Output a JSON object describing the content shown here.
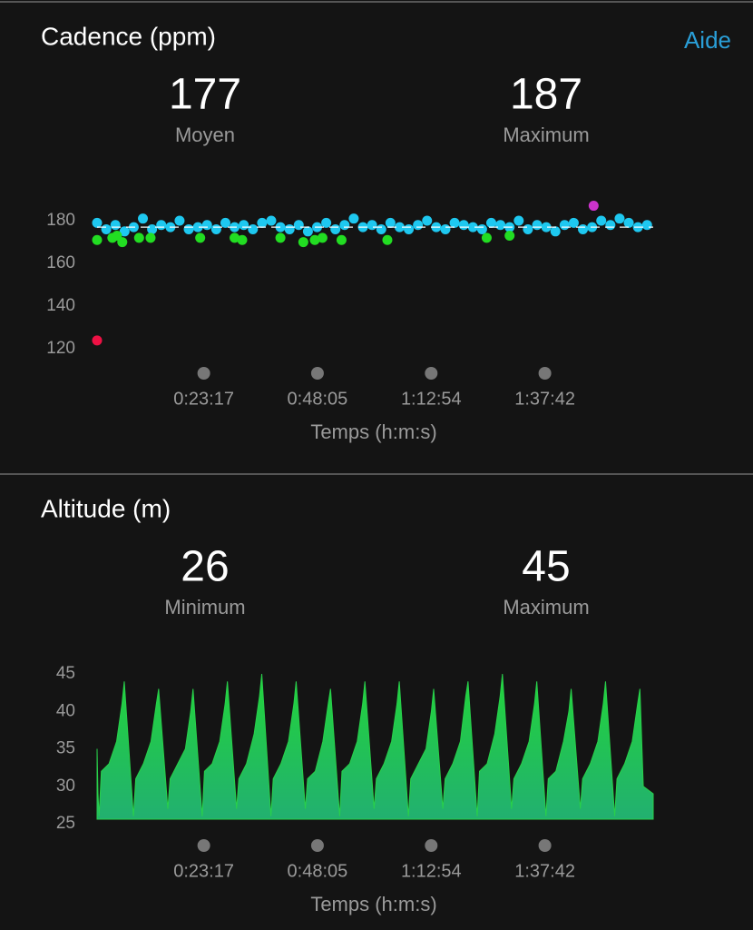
{
  "header": {
    "help": "Aide"
  },
  "chart_data": [
    {
      "type": "scatter",
      "title": "Cadence (ppm)",
      "stats": [
        {
          "value": 177,
          "label": "Moyen"
        },
        {
          "value": 187,
          "label": "Maximum"
        }
      ],
      "xlabel": "Temps (h:m:s)",
      "xlim": [
        0,
        7280
      ],
      "xticks": [
        {
          "value": 1397,
          "label": "0:23:17"
        },
        {
          "value": 2885,
          "label": "0:48:05"
        },
        {
          "value": 4374,
          "label": "1:12:54"
        },
        {
          "value": 5862,
          "label": "1:37:42"
        }
      ],
      "ylim": [
        115,
        190
      ],
      "yticks": [
        120,
        140,
        160,
        180
      ],
      "series": [
        {
          "color": "#1ec8f0",
          "x": [
            0,
            120,
            240,
            360,
            480,
            600,
            720,
            840,
            960,
            1080,
            1200,
            1320,
            1440,
            1560,
            1680,
            1800,
            1920,
            2040,
            2160,
            2280,
            2400,
            2520,
            2640,
            2760,
            2880,
            3000,
            3120,
            3240,
            3360,
            3480,
            3600,
            3720,
            3840,
            3960,
            4080,
            4200,
            4320,
            4440,
            4560,
            4680,
            4800,
            4920,
            5040,
            5160,
            5280,
            5400,
            5520,
            5640,
            5760,
            5880,
            6000,
            6120,
            6240,
            6360,
            6480,
            6600,
            6720,
            6840,
            6960,
            7080,
            7200
          ],
          "values": [
            179,
            176,
            178,
            175,
            177,
            181,
            176,
            178,
            177,
            180,
            176,
            177,
            178,
            176,
            179,
            177,
            178,
            176,
            179,
            180,
            177,
            176,
            178,
            175,
            177,
            179,
            176,
            178,
            181,
            177,
            178,
            176,
            179,
            177,
            176,
            178,
            180,
            177,
            176,
            179,
            178,
            177,
            176,
            179,
            178,
            177,
            180,
            176,
            178,
            177,
            175,
            178,
            179,
            176,
            177,
            180,
            178,
            181,
            179,
            177,
            178
          ]
        },
        {
          "color": "#22dd22",
          "x": [
            0,
            200,
            260,
            330,
            550,
            700,
            1350,
            1800,
            1900,
            2400,
            2700,
            2850,
            2950,
            3200,
            3800,
            5100,
            5400
          ],
          "values": [
            171,
            172,
            173,
            170,
            172,
            172,
            172,
            172,
            171,
            172,
            170,
            171,
            172,
            171,
            171,
            172,
            173
          ]
        },
        {
          "color": "#ee1144",
          "x": [
            0
          ],
          "values": [
            124
          ]
        },
        {
          "color": "#cc33cc",
          "x": [
            6500
          ],
          "values": [
            187
          ]
        }
      ]
    },
    {
      "type": "area",
      "title": "Altitude (m)",
      "stats": [
        {
          "value": 26,
          "label": "Minimum"
        },
        {
          "value": 45,
          "label": "Maximum"
        }
      ],
      "xlabel": "Temps (h:m:s)",
      "xlim": [
        0,
        7280
      ],
      "xticks": [
        {
          "value": 1397,
          "label": "0:23:17"
        },
        {
          "value": 2885,
          "label": "0:48:05"
        },
        {
          "value": 4374,
          "label": "1:12:54"
        },
        {
          "value": 5862,
          "label": "1:37:42"
        }
      ],
      "ylim": [
        25,
        45
      ],
      "yticks": [
        25,
        30,
        35,
        40,
        45
      ],
      "series": [
        {
          "color": "#28d04a",
          "x": [
            0,
            12,
            26,
            56,
            156,
            256,
            326,
            356,
            476,
            506,
            606,
            706,
            776,
            806,
            926,
            956,
            1056,
            1156,
            1226,
            1256,
            1376,
            1406,
            1506,
            1606,
            1676,
            1706,
            1826,
            1856,
            1956,
            2056,
            2126,
            2156,
            2276,
            2306,
            2406,
            2506,
            2576,
            2606,
            2726,
            2756,
            2856,
            2956,
            3026,
            3056,
            3176,
            3206,
            3306,
            3406,
            3476,
            3506,
            3626,
            3656,
            3756,
            3856,
            3926,
            3956,
            4076,
            4106,
            4206,
            4306,
            4376,
            4406,
            4526,
            4556,
            4656,
            4756,
            4826,
            4856,
            4976,
            5006,
            5106,
            5206,
            5276,
            5306,
            5426,
            5456,
            5556,
            5656,
            5726,
            5756,
            5876,
            5906,
            6006,
            6106,
            6176,
            6206,
            6326,
            6356,
            6456,
            6556,
            6626,
            6656,
            6776,
            6806,
            6906,
            7006,
            7076,
            7106,
            7150,
            7280
          ],
          "values": [
            35,
            29,
            26,
            32,
            33,
            36,
            41,
            44,
            26,
            31,
            33,
            36,
            41,
            43,
            27,
            31,
            33,
            35,
            40,
            43,
            26,
            32,
            33,
            36,
            41,
            44,
            27,
            31,
            33,
            37,
            42,
            45,
            26,
            31,
            33,
            36,
            41,
            44,
            27,
            31,
            32,
            36,
            41,
            43,
            26,
            32,
            33,
            36,
            41,
            44,
            27,
            31,
            33,
            36,
            41,
            44,
            26,
            31,
            33,
            35,
            40,
            43,
            27,
            31,
            33,
            36,
            42,
            44,
            26,
            32,
            33,
            37,
            42,
            45,
            27,
            31,
            33,
            36,
            41,
            44,
            26,
            31,
            32,
            36,
            40,
            43,
            27,
            31,
            33,
            36,
            41,
            44,
            26,
            31,
            33,
            36,
            41,
            43,
            30,
            29
          ]
        }
      ]
    }
  ]
}
